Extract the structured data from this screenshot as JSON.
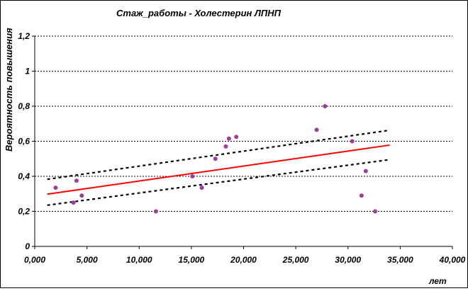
{
  "chart_data": {
    "type": "scatter",
    "title": "Стаж_работы - Холестерин ЛПНП",
    "xlabel": "лет",
    "ylabel": "Вероятность повышения",
    "xlim": [
      0,
      40000
    ],
    "ylim": [
      0,
      1.2
    ],
    "x_ticks": [
      0,
      5000,
      10000,
      15000,
      20000,
      25000,
      30000,
      35000,
      40000
    ],
    "x_tick_labels": [
      "0,000",
      "5,000",
      "10,000",
      "15,000",
      "20,000",
      "25,000",
      "30,000",
      "35,000",
      "40,000"
    ],
    "y_ticks": [
      0,
      0.2,
      0.4,
      0.6,
      0.8,
      1,
      1.2
    ],
    "y_tick_labels": [
      "0",
      "0,2",
      "0,4",
      "0,6",
      "0,8",
      "1",
      "1,2"
    ],
    "grid": "horizontal-dashed",
    "colors": {
      "points": "#9b3d9b",
      "fit": "#ff0000",
      "ci": "#000000",
      "grid": "#000000"
    },
    "points": {
      "x": [
        2000,
        3700,
        4000,
        4500,
        11600,
        15100,
        16000,
        17300,
        18300,
        18600,
        19300,
        27000,
        27800,
        30400,
        31300,
        31700,
        32600
      ],
      "y": [
        0.335,
        0.25,
        0.375,
        0.29,
        0.2,
        0.4,
        0.335,
        0.5,
        0.57,
        0.615,
        0.625,
        0.665,
        0.8,
        0.6,
        0.29,
        0.43,
        0.2
      ]
    },
    "fit": {
      "x": [
        1200,
        34000
      ],
      "y": [
        0.298,
        0.578
      ]
    },
    "ci_upper": {
      "x": [
        1200,
        34000
      ],
      "y": [
        0.383,
        0.663
      ]
    },
    "ci_lower": {
      "x": [
        1200,
        34000
      ],
      "y": [
        0.235,
        0.495
      ]
    }
  }
}
